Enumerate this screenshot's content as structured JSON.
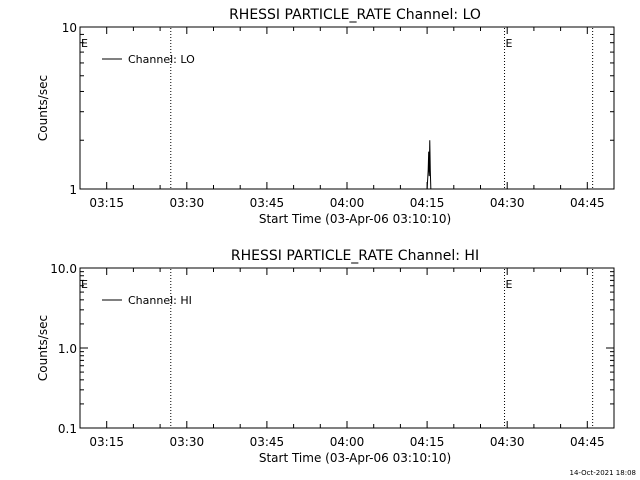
{
  "footer": {
    "timestamp": "14-Oct-2021 18:08"
  },
  "chart_data": [
    {
      "type": "line",
      "title": "RHESSI PARTICLE_RATE Channel: LO",
      "xlabel": "Start Time (03-Apr-06 03:10:10)",
      "ylabel": "Counts/sec",
      "yscale": "log",
      "ylim": [
        1,
        10
      ],
      "y_ticks": [
        1,
        10
      ],
      "y_tick_labels": [
        "1",
        "10"
      ],
      "xlim": [
        "03:10",
        "04:50"
      ],
      "x_ticks": [
        "03:15",
        "03:30",
        "03:45",
        "04:00",
        "04:15",
        "04:30",
        "04:45"
      ],
      "legend": {
        "placement": "top-left",
        "entries": [
          "Channel: LO"
        ]
      },
      "event_lines": [
        {
          "time": "03:27",
          "label": ""
        },
        {
          "time": "04:29.5",
          "label": "E"
        },
        {
          "time": "04:46",
          "label": ""
        }
      ],
      "start_label": "E",
      "series": [
        {
          "name": "Channel: LO",
          "points": [
            [
              "04:15.0",
              1.0
            ],
            [
              "04:15.2",
              1.3
            ],
            [
              "04:15.3",
              1.7
            ],
            [
              "04:15.4",
              1.2
            ],
            [
              "04:15.5",
              2.0
            ],
            [
              "04:15.6",
              1.3
            ],
            [
              "04:15.7",
              1.0
            ]
          ]
        }
      ]
    },
    {
      "type": "line",
      "title": "RHESSI PARTICLE_RATE Channel: HI",
      "xlabel": "Start Time (03-Apr-06 03:10:10)",
      "ylabel": "Counts/sec",
      "yscale": "log",
      "ylim": [
        0.1,
        10
      ],
      "y_ticks": [
        0.1,
        1,
        10
      ],
      "y_tick_labels": [
        "0.1",
        "1.0",
        "10.0"
      ],
      "xlim": [
        "03:10",
        "04:50"
      ],
      "x_ticks": [
        "03:15",
        "03:30",
        "03:45",
        "04:00",
        "04:15",
        "04:30",
        "04:45"
      ],
      "legend": {
        "placement": "top-left",
        "entries": [
          "Channel: HI"
        ]
      },
      "event_lines": [
        {
          "time": "03:27",
          "label": ""
        },
        {
          "time": "04:29.5",
          "label": "E"
        },
        {
          "time": "04:46",
          "label": ""
        }
      ],
      "start_label": "E",
      "series": [
        {
          "name": "Channel: HI",
          "points": []
        }
      ]
    }
  ]
}
